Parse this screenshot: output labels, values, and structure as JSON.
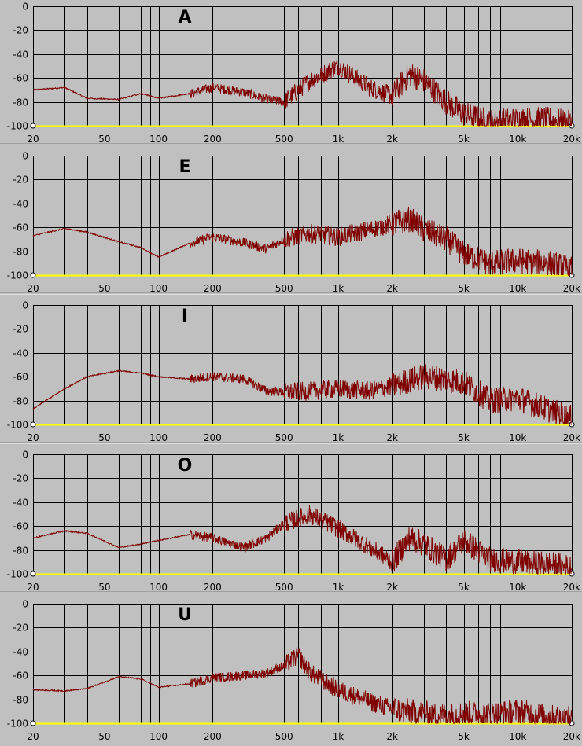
{
  "colors": {
    "background": "#c0c0c0",
    "grid": "#000000",
    "baseline": "#ffff00",
    "trace": "#800000",
    "separator": "#808080"
  },
  "chart_data": [
    {
      "type": "line",
      "title": "A",
      "xscale": "log",
      "xlim": [
        20,
        20000
      ],
      "ylim": [
        -100,
        0
      ],
      "yticks": [
        "0",
        "-20",
        "-40",
        "-60",
        "-80",
        "-100"
      ],
      "xticks": [
        "20",
        "50",
        "100",
        "200",
        "500",
        "1k",
        "2k",
        "5k",
        "10k",
        "20k"
      ],
      "grid": true,
      "series": [
        {
          "x": [
            20,
            30,
            40,
            60,
            80,
            100,
            150,
            200,
            300,
            400,
            500,
            700,
            1000,
            1500,
            2000,
            2500,
            3000,
            4000,
            5000,
            7000,
            10000,
            15000,
            20000
          ],
          "y": [
            -70,
            -68,
            -77,
            -78,
            -73,
            -77,
            -73,
            -68,
            -72,
            -78,
            -80,
            -62,
            -50,
            -68,
            -75,
            -57,
            -62,
            -80,
            -90,
            -97,
            -95,
            -95,
            -98
          ]
        }
      ]
    },
    {
      "type": "line",
      "title": "E",
      "xscale": "log",
      "xlim": [
        20,
        20000
      ],
      "ylim": [
        -100,
        0
      ],
      "yticks": [
        "0",
        "-20",
        "-40",
        "-60",
        "-80",
        "-100"
      ],
      "xticks": [
        "20",
        "50",
        "100",
        "200",
        "500",
        "1k",
        "2k",
        "5k",
        "10k",
        "20k"
      ],
      "grid": true,
      "series": [
        {
          "x": [
            20,
            30,
            40,
            60,
            80,
            100,
            150,
            200,
            300,
            400,
            500,
            700,
            1000,
            1500,
            2000,
            2500,
            3000,
            4000,
            5000,
            7000,
            10000,
            15000,
            20000
          ],
          "y": [
            -67,
            -61,
            -64,
            -72,
            -77,
            -85,
            -73,
            -68,
            -73,
            -78,
            -70,
            -65,
            -68,
            -62,
            -57,
            -53,
            -62,
            -70,
            -82,
            -90,
            -88,
            -90,
            -95
          ]
        }
      ]
    },
    {
      "type": "line",
      "title": "I",
      "xscale": "log",
      "xlim": [
        20,
        20000
      ],
      "ylim": [
        -100,
        0
      ],
      "yticks": [
        "0",
        "-20",
        "-40",
        "-60",
        "-80",
        "-100"
      ],
      "xticks": [
        "20",
        "50",
        "100",
        "200",
        "500",
        "1k",
        "2k",
        "5k",
        "10k",
        "20k"
      ],
      "grid": true,
      "series": [
        {
          "x": [
            20,
            30,
            40,
            60,
            80,
            100,
            150,
            200,
            300,
            400,
            500,
            700,
            1000,
            1500,
            2000,
            2500,
            3000,
            4000,
            5000,
            7000,
            10000,
            15000,
            20000
          ],
          "y": [
            -87,
            -70,
            -60,
            -55,
            -57,
            -60,
            -62,
            -60,
            -62,
            -72,
            -73,
            -72,
            -70,
            -72,
            -68,
            -63,
            -60,
            -62,
            -65,
            -80,
            -78,
            -88,
            -95
          ]
        }
      ]
    },
    {
      "type": "line",
      "title": "O",
      "xscale": "log",
      "xlim": [
        20,
        20000
      ],
      "ylim": [
        -100,
        0
      ],
      "yticks": [
        "0",
        "-20",
        "-40",
        "-60",
        "-80",
        "-100"
      ],
      "xticks": [
        "20",
        "50",
        "100",
        "200",
        "500",
        "1k",
        "2k",
        "5k",
        "10k",
        "20k"
      ],
      "grid": true,
      "series": [
        {
          "x": [
            20,
            30,
            40,
            60,
            80,
            100,
            150,
            200,
            300,
            400,
            500,
            700,
            1000,
            1500,
            2000,
            2500,
            3000,
            4000,
            5000,
            7000,
            10000,
            15000,
            20000
          ],
          "y": [
            -70,
            -64,
            -66,
            -78,
            -75,
            -72,
            -67,
            -70,
            -78,
            -70,
            -58,
            -50,
            -62,
            -78,
            -90,
            -70,
            -75,
            -88,
            -72,
            -88,
            -90,
            -92,
            -95
          ]
        }
      ]
    },
    {
      "type": "line",
      "title": "U",
      "xscale": "log",
      "xlim": [
        20,
        20000
      ],
      "ylim": [
        -100,
        0
      ],
      "yticks": [
        "0",
        "-20",
        "-40",
        "-60",
        "-80",
        "-100"
      ],
      "xticks": [
        "20",
        "50",
        "100",
        "200",
        "500",
        "1k",
        "2k",
        "5k",
        "10k",
        "20k"
      ],
      "grid": true,
      "series": [
        {
          "x": [
            20,
            30,
            40,
            60,
            80,
            100,
            150,
            200,
            300,
            400,
            500,
            600,
            700,
            1000,
            1500,
            2000,
            3000,
            4000,
            5000,
            7000,
            10000,
            15000,
            20000
          ],
          "y": [
            -72,
            -73,
            -71,
            -61,
            -63,
            -70,
            -67,
            -62,
            -60,
            -58,
            -52,
            -43,
            -58,
            -72,
            -82,
            -88,
            -92,
            -94,
            -92,
            -93,
            -90,
            -95,
            -97
          ]
        }
      ]
    }
  ]
}
